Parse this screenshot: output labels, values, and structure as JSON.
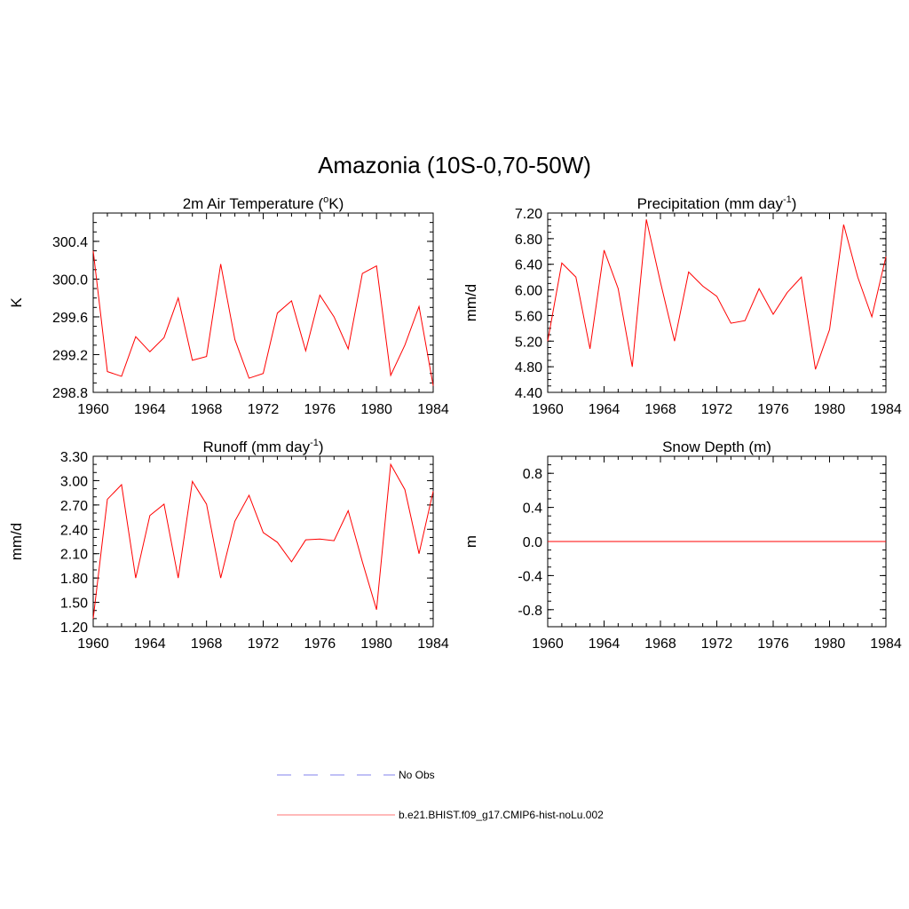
{
  "figure": {
    "title": "Amazonia (10S-0,70-50W)"
  },
  "chart_data": [
    {
      "type": "line",
      "title": "2m Air Temperature (°K)",
      "title_parts": [
        "2m Air Temperature (",
        "o",
        "K)"
      ],
      "ylabel": "K",
      "xlim": [
        1960,
        1984
      ],
      "ylim": [
        298.8,
        300.7
      ],
      "xticks": [
        "1960",
        "1964",
        "1968",
        "1972",
        "1976",
        "1980",
        "1984"
      ],
      "yticks": [
        "298.8",
        "299.2",
        "299.6",
        "300.0",
        "300.4"
      ],
      "ytick_values": [
        298.8,
        299.2,
        299.6,
        300.0,
        300.4
      ],
      "ytick_minor_step": 0.1,
      "grid": false,
      "x": [
        1960,
        1961,
        1962,
        1963,
        1964,
        1965,
        1966,
        1967,
        1968,
        1969,
        1970,
        1971,
        1972,
        1973,
        1974,
        1975,
        1976,
        1977,
        1978,
        1979,
        1980,
        1981,
        1982,
        1983,
        1984
      ],
      "series": [
        {
          "name": "b.e21.BHIST.f09_g17.CMIP6-hist-noLu.002",
          "color": "#ff0000",
          "values": [
            300.3,
            299.02,
            298.97,
            299.39,
            299.23,
            299.38,
            299.8,
            299.14,
            299.18,
            300.16,
            299.36,
            298.95,
            299.0,
            299.64,
            299.77,
            299.24,
            299.83,
            299.6,
            299.26,
            300.06,
            300.14,
            298.98,
            299.3,
            299.71,
            298.87
          ]
        }
      ]
    },
    {
      "type": "line",
      "title": "Precipitation (mm day-1)",
      "title_parts": [
        "Precipitation (mm day",
        "-1",
        ")"
      ],
      "ylabel": "mm/d",
      "xlim": [
        1960,
        1984
      ],
      "ylim": [
        4.4,
        7.2
      ],
      "xticks": [
        "1960",
        "1964",
        "1968",
        "1972",
        "1976",
        "1980",
        "1984"
      ],
      "yticks": [
        "4.40",
        "4.80",
        "5.20",
        "5.60",
        "6.00",
        "6.40",
        "6.80",
        "7.20"
      ],
      "ytick_values": [
        4.4,
        4.8,
        5.2,
        5.6,
        6.0,
        6.4,
        6.8,
        7.2
      ],
      "ytick_minor_step": 0.1,
      "grid": false,
      "x": [
        1960,
        1961,
        1962,
        1963,
        1964,
        1965,
        1966,
        1967,
        1968,
        1969,
        1970,
        1971,
        1972,
        1973,
        1974,
        1975,
        1976,
        1977,
        1978,
        1979,
        1980,
        1981,
        1982,
        1983,
        1984
      ],
      "series": [
        {
          "name": "b.e21.BHIST.f09_g17.CMIP6-hist-noLu.002",
          "color": "#ff0000",
          "values": [
            5.2,
            6.42,
            6.2,
            5.08,
            6.62,
            6.02,
            4.8,
            7.1,
            6.12,
            5.2,
            6.28,
            6.06,
            5.9,
            5.48,
            5.52,
            6.02,
            5.62,
            5.96,
            6.2,
            4.76,
            5.38,
            7.02,
            6.2,
            5.58,
            6.52
          ]
        }
      ]
    },
    {
      "type": "line",
      "title": "Runoff (mm day-1)",
      "title_parts": [
        "Runoff (mm day",
        "-1",
        ")"
      ],
      "ylabel": "mm/d",
      "xlim": [
        1960,
        1984
      ],
      "ylim": [
        1.2,
        3.3
      ],
      "xticks": [
        "1960",
        "1964",
        "1968",
        "1972",
        "1976",
        "1980",
        "1984"
      ],
      "yticks": [
        "1.20",
        "1.50",
        "1.80",
        "2.10",
        "2.40",
        "2.70",
        "3.00",
        "3.30"
      ],
      "ytick_values": [
        1.2,
        1.5,
        1.8,
        2.1,
        2.4,
        2.7,
        3.0,
        3.3
      ],
      "ytick_minor_step": 0.1,
      "grid": false,
      "x": [
        1960,
        1961,
        1962,
        1963,
        1964,
        1965,
        1966,
        1967,
        1968,
        1969,
        1970,
        1971,
        1972,
        1973,
        1974,
        1975,
        1976,
        1977,
        1978,
        1979,
        1980,
        1981,
        1982,
        1983,
        1984
      ],
      "series": [
        {
          "name": "b.e21.BHIST.f09_g17.CMIP6-hist-noLu.002",
          "color": "#ff0000",
          "values": [
            1.3,
            2.77,
            2.95,
            1.8,
            2.57,
            2.71,
            1.8,
            2.99,
            2.71,
            1.8,
            2.5,
            2.82,
            2.36,
            2.24,
            2.0,
            2.27,
            2.28,
            2.26,
            2.63,
            2.0,
            1.41,
            3.2,
            2.89,
            2.1,
            2.87
          ]
        }
      ]
    },
    {
      "type": "line",
      "title": "Snow Depth (m)",
      "title_parts": [
        "Snow Depth (m)",
        "",
        ""
      ],
      "ylabel": "m",
      "xlim": [
        1960,
        1984
      ],
      "ylim": [
        -1.0,
        1.0
      ],
      "xticks": [
        "1960",
        "1964",
        "1968",
        "1972",
        "1976",
        "1980",
        "1984"
      ],
      "yticks": [
        "-0.8",
        "-0.4",
        "0.0",
        "0.4",
        "0.8"
      ],
      "ytick_values": [
        -0.8,
        -0.4,
        0.0,
        0.4,
        0.8
      ],
      "ytick_minor_step": 0.1,
      "grid": false,
      "x": [
        1960,
        1961,
        1962,
        1963,
        1964,
        1965,
        1966,
        1967,
        1968,
        1969,
        1970,
        1971,
        1972,
        1973,
        1974,
        1975,
        1976,
        1977,
        1978,
        1979,
        1980,
        1981,
        1982,
        1983,
        1984
      ],
      "series": [
        {
          "name": "b.e21.BHIST.f09_g17.CMIP6-hist-noLu.002",
          "color": "#ff0000",
          "values": [
            0,
            0,
            0,
            0,
            0,
            0,
            0,
            0,
            0,
            0,
            0,
            0,
            0,
            0,
            0,
            0,
            0,
            0,
            0,
            0,
            0,
            0,
            0,
            0,
            0
          ]
        }
      ]
    }
  ],
  "legend": {
    "items": [
      {
        "label": "No Obs",
        "color": "#9a9af0",
        "style": "dashed"
      },
      {
        "label": "b.e21.BHIST.f09_g17.CMIP6-hist-noLu.002",
        "color": "#ff9090",
        "style": "solid"
      }
    ]
  }
}
